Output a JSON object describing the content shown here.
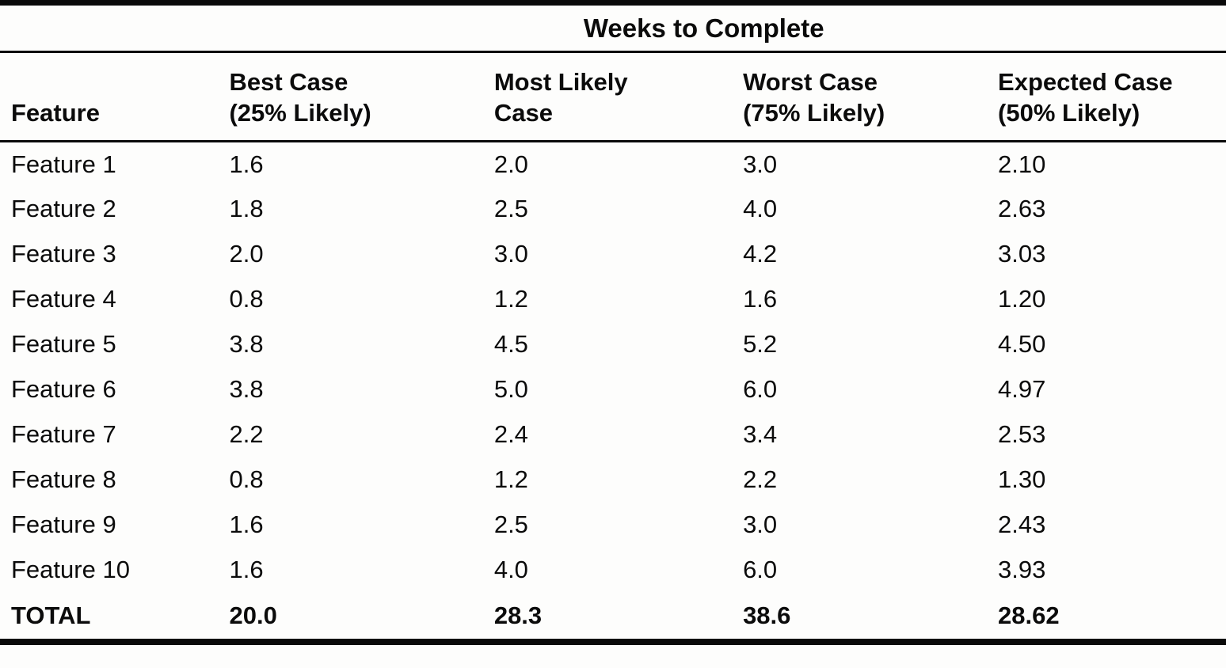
{
  "page": {
    "background": "#fdfdfc",
    "text_color": "#0b0b0b",
    "rule_color": "#0a0a0a"
  },
  "table": {
    "spanner_title": "Weeks to Complete",
    "header": {
      "feature": "Feature",
      "best": {
        "line1": "Best Case",
        "line2": "(25% Likely)"
      },
      "likely": {
        "line1": "Most Likely",
        "line2": "Case"
      },
      "worst": {
        "line1": "Worst Case",
        "line2": "(75% Likely)"
      },
      "expected": {
        "line1": "Expected Case",
        "line2": "(50% Likely)"
      }
    },
    "rows": [
      {
        "feature": "Feature 1",
        "best": "1.6",
        "likely": "2.0",
        "worst": "3.0",
        "expected": "2.10"
      },
      {
        "feature": "Feature 2",
        "best": "1.8",
        "likely": "2.5",
        "worst": "4.0",
        "expected": "2.63"
      },
      {
        "feature": "Feature 3",
        "best": "2.0",
        "likely": "3.0",
        "worst": "4.2",
        "expected": "3.03"
      },
      {
        "feature": "Feature 4",
        "best": "0.8",
        "likely": "1.2",
        "worst": "1.6",
        "expected": "1.20"
      },
      {
        "feature": "Feature 5",
        "best": "3.8",
        "likely": "4.5",
        "worst": "5.2",
        "expected": "4.50"
      },
      {
        "feature": "Feature 6",
        "best": "3.8",
        "likely": "5.0",
        "worst": "6.0",
        "expected": "4.97"
      },
      {
        "feature": "Feature 7",
        "best": "2.2",
        "likely": "2.4",
        "worst": "3.4",
        "expected": "2.53"
      },
      {
        "feature": "Feature 8",
        "best": "0.8",
        "likely": "1.2",
        "worst": "2.2",
        "expected": "1.30"
      },
      {
        "feature": "Feature 9",
        "best": "1.6",
        "likely": "2.5",
        "worst": "3.0",
        "expected": "2.43"
      },
      {
        "feature": "Feature 10",
        "best": "1.6",
        "likely": "4.0",
        "worst": "6.0",
        "expected": "3.93"
      }
    ],
    "total": {
      "feature": "TOTAL",
      "best": "20.0",
      "likely": "28.3",
      "worst": "38.6",
      "expected": "28.62"
    }
  },
  "chart_data": {
    "type": "table",
    "title": "Weeks to Complete",
    "columns": [
      "Feature",
      "Best Case (25% Likely)",
      "Most Likely Case",
      "Worst Case (75% Likely)",
      "Expected Case (50% Likely)"
    ],
    "rows": [
      [
        "Feature 1",
        1.6,
        2.0,
        3.0,
        2.1
      ],
      [
        "Feature 2",
        1.8,
        2.5,
        4.0,
        2.63
      ],
      [
        "Feature 3",
        2.0,
        3.0,
        4.2,
        3.03
      ],
      [
        "Feature 4",
        0.8,
        1.2,
        1.6,
        1.2
      ],
      [
        "Feature 5",
        3.8,
        4.5,
        5.2,
        4.5
      ],
      [
        "Feature 6",
        3.8,
        5.0,
        6.0,
        4.97
      ],
      [
        "Feature 7",
        2.2,
        2.4,
        3.4,
        2.53
      ],
      [
        "Feature 8",
        0.8,
        1.2,
        2.2,
        1.3
      ],
      [
        "Feature 9",
        1.6,
        2.5,
        3.0,
        2.43
      ],
      [
        "Feature 10",
        1.6,
        4.0,
        6.0,
        3.93
      ]
    ],
    "total_row": [
      "TOTAL",
      20.0,
      28.3,
      38.6,
      28.62
    ]
  }
}
